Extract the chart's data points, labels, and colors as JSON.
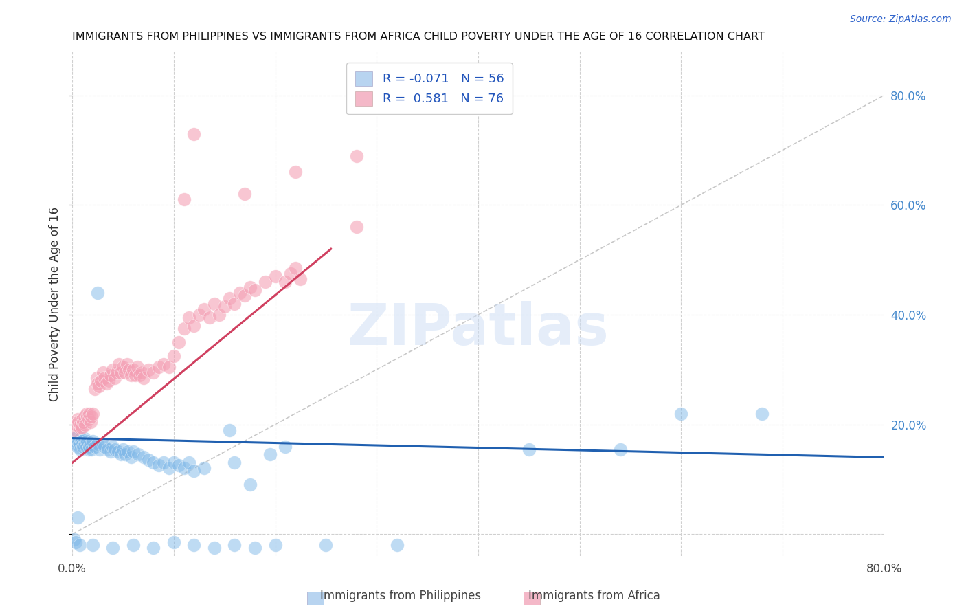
{
  "title": "IMMIGRANTS FROM PHILIPPINES VS IMMIGRANTS FROM AFRICA CHILD POVERTY UNDER THE AGE OF 16 CORRELATION CHART",
  "source": "Source: ZipAtlas.com",
  "ylabel": "Child Poverty Under the Age of 16",
  "xlim": [
    0.0,
    0.8
  ],
  "ylim": [
    -0.04,
    0.88
  ],
  "watermark": "ZIPatlas",
  "philippines_color": "#7fb8e8",
  "africa_color": "#f4a0b5",
  "philippines_line_color": "#2060b0",
  "africa_line_color": "#d04060",
  "diag_color": "#c8c8c8",
  "phil_line": [
    0.175,
    0.14
  ],
  "afr_line": [
    0.13,
    0.52
  ],
  "philippines_scatter": [
    [
      0.002,
      0.175
    ],
    [
      0.003,
      0.17
    ],
    [
      0.004,
      0.165
    ],
    [
      0.005,
      0.18
    ],
    [
      0.005,
      0.16
    ],
    [
      0.006,
      0.17
    ],
    [
      0.007,
      0.165
    ],
    [
      0.008,
      0.175
    ],
    [
      0.008,
      0.155
    ],
    [
      0.009,
      0.17
    ],
    [
      0.01,
      0.165
    ],
    [
      0.011,
      0.16
    ],
    [
      0.012,
      0.175
    ],
    [
      0.013,
      0.165
    ],
    [
      0.014,
      0.16
    ],
    [
      0.015,
      0.17
    ],
    [
      0.016,
      0.155
    ],
    [
      0.017,
      0.16
    ],
    [
      0.018,
      0.165
    ],
    [
      0.019,
      0.155
    ],
    [
      0.02,
      0.17
    ],
    [
      0.022,
      0.16
    ],
    [
      0.025,
      0.165
    ],
    [
      0.025,
      0.44
    ],
    [
      0.027,
      0.155
    ],
    [
      0.03,
      0.165
    ],
    [
      0.032,
      0.16
    ],
    [
      0.035,
      0.155
    ],
    [
      0.038,
      0.15
    ],
    [
      0.04,
      0.16
    ],
    [
      0.042,
      0.155
    ],
    [
      0.045,
      0.15
    ],
    [
      0.048,
      0.145
    ],
    [
      0.05,
      0.155
    ],
    [
      0.052,
      0.145
    ],
    [
      0.055,
      0.15
    ],
    [
      0.058,
      0.14
    ],
    [
      0.06,
      0.15
    ],
    [
      0.065,
      0.145
    ],
    [
      0.07,
      0.14
    ],
    [
      0.075,
      0.135
    ],
    [
      0.08,
      0.13
    ],
    [
      0.085,
      0.125
    ],
    [
      0.09,
      0.13
    ],
    [
      0.095,
      0.12
    ],
    [
      0.1,
      0.13
    ],
    [
      0.105,
      0.125
    ],
    [
      0.11,
      0.12
    ],
    [
      0.115,
      0.13
    ],
    [
      0.12,
      0.115
    ],
    [
      0.13,
      0.12
    ],
    [
      0.155,
      0.19
    ],
    [
      0.16,
      0.13
    ],
    [
      0.175,
      0.09
    ],
    [
      0.195,
      0.145
    ],
    [
      0.21,
      0.16
    ],
    [
      0.002,
      -0.01
    ],
    [
      0.003,
      -0.015
    ],
    [
      0.45,
      0.155
    ],
    [
      0.005,
      0.03
    ],
    [
      0.54,
      0.155
    ],
    [
      0.007,
      -0.02
    ],
    [
      0.6,
      0.22
    ],
    [
      0.68,
      0.22
    ],
    [
      0.02,
      -0.02
    ],
    [
      0.04,
      -0.025
    ],
    [
      0.06,
      -0.02
    ],
    [
      0.08,
      -0.025
    ],
    [
      0.1,
      -0.015
    ],
    [
      0.12,
      -0.02
    ],
    [
      0.14,
      -0.025
    ],
    [
      0.16,
      -0.02
    ],
    [
      0.18,
      -0.025
    ],
    [
      0.2,
      -0.02
    ],
    [
      0.25,
      -0.02
    ],
    [
      0.32,
      -0.02
    ]
  ],
  "africa_scatter": [
    [
      0.002,
      0.19
    ],
    [
      0.004,
      0.2
    ],
    [
      0.005,
      0.21
    ],
    [
      0.006,
      0.205
    ],
    [
      0.007,
      0.195
    ],
    [
      0.008,
      0.2
    ],
    [
      0.009,
      0.195
    ],
    [
      0.01,
      0.21
    ],
    [
      0.011,
      0.205
    ],
    [
      0.012,
      0.215
    ],
    [
      0.013,
      0.2
    ],
    [
      0.014,
      0.22
    ],
    [
      0.015,
      0.215
    ],
    [
      0.016,
      0.21
    ],
    [
      0.017,
      0.22
    ],
    [
      0.018,
      0.205
    ],
    [
      0.019,
      0.215
    ],
    [
      0.02,
      0.22
    ],
    [
      0.022,
      0.265
    ],
    [
      0.024,
      0.285
    ],
    [
      0.025,
      0.275
    ],
    [
      0.026,
      0.27
    ],
    [
      0.028,
      0.28
    ],
    [
      0.03,
      0.295
    ],
    [
      0.032,
      0.285
    ],
    [
      0.034,
      0.275
    ],
    [
      0.036,
      0.28
    ],
    [
      0.038,
      0.29
    ],
    [
      0.04,
      0.3
    ],
    [
      0.042,
      0.285
    ],
    [
      0.044,
      0.295
    ],
    [
      0.046,
      0.31
    ],
    [
      0.048,
      0.295
    ],
    [
      0.05,
      0.305
    ],
    [
      0.052,
      0.295
    ],
    [
      0.054,
      0.31
    ],
    [
      0.056,
      0.3
    ],
    [
      0.058,
      0.29
    ],
    [
      0.06,
      0.3
    ],
    [
      0.062,
      0.29
    ],
    [
      0.064,
      0.305
    ],
    [
      0.066,
      0.29
    ],
    [
      0.068,
      0.295
    ],
    [
      0.07,
      0.285
    ],
    [
      0.075,
      0.3
    ],
    [
      0.08,
      0.295
    ],
    [
      0.085,
      0.305
    ],
    [
      0.09,
      0.31
    ],
    [
      0.095,
      0.305
    ],
    [
      0.1,
      0.325
    ],
    [
      0.105,
      0.35
    ],
    [
      0.11,
      0.375
    ],
    [
      0.115,
      0.395
    ],
    [
      0.12,
      0.38
    ],
    [
      0.125,
      0.4
    ],
    [
      0.13,
      0.41
    ],
    [
      0.135,
      0.395
    ],
    [
      0.14,
      0.42
    ],
    [
      0.145,
      0.4
    ],
    [
      0.15,
      0.415
    ],
    [
      0.155,
      0.43
    ],
    [
      0.16,
      0.42
    ],
    [
      0.165,
      0.44
    ],
    [
      0.17,
      0.435
    ],
    [
      0.175,
      0.45
    ],
    [
      0.18,
      0.445
    ],
    [
      0.19,
      0.46
    ],
    [
      0.2,
      0.47
    ],
    [
      0.21,
      0.46
    ],
    [
      0.215,
      0.475
    ],
    [
      0.22,
      0.485
    ],
    [
      0.225,
      0.465
    ],
    [
      0.12,
      0.73
    ],
    [
      0.22,
      0.66
    ],
    [
      0.28,
      0.69
    ],
    [
      0.17,
      0.62
    ],
    [
      0.11,
      0.61
    ],
    [
      0.28,
      0.56
    ]
  ]
}
